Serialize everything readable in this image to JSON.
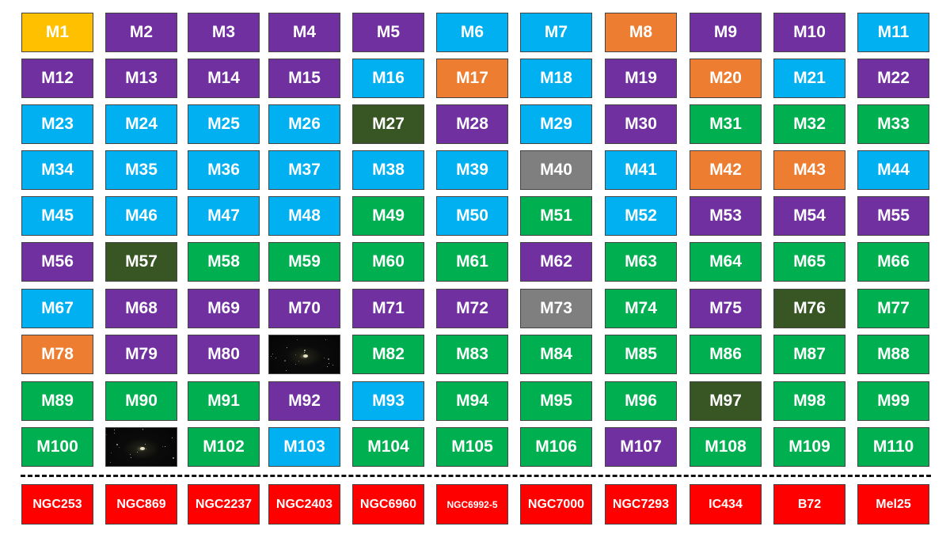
{
  "colors": {
    "yellow": "#FFC000",
    "purple": "#7030A0",
    "blue": "#00B0F0",
    "orange": "#ED7D31",
    "green": "#00B050",
    "darkgreen": "#375623",
    "gray": "#7F7F7F",
    "red": "#FF0000"
  },
  "messier_rows": [
    [
      [
        "M1",
        "yellow"
      ],
      [
        "M2",
        "purple"
      ],
      [
        "M3",
        "purple"
      ],
      [
        "M4",
        "purple"
      ],
      [
        "M5",
        "purple"
      ],
      [
        "M6",
        "blue"
      ],
      [
        "M7",
        "blue"
      ],
      [
        "M8",
        "orange"
      ],
      [
        "M9",
        "purple"
      ],
      [
        "M10",
        "purple"
      ],
      [
        "M11",
        "blue"
      ]
    ],
    [
      [
        "M12",
        "purple"
      ],
      [
        "M13",
        "purple"
      ],
      [
        "M14",
        "purple"
      ],
      [
        "M15",
        "purple"
      ],
      [
        "M16",
        "blue"
      ],
      [
        "M17",
        "orange"
      ],
      [
        "M18",
        "blue"
      ],
      [
        "M19",
        "purple"
      ],
      [
        "M20",
        "orange"
      ],
      [
        "M21",
        "blue"
      ],
      [
        "M22",
        "purple"
      ]
    ],
    [
      [
        "M23",
        "blue"
      ],
      [
        "M24",
        "blue"
      ],
      [
        "M25",
        "blue"
      ],
      [
        "M26",
        "blue"
      ],
      [
        "M27",
        "darkgreen"
      ],
      [
        "M28",
        "purple"
      ],
      [
        "M29",
        "blue"
      ],
      [
        "M30",
        "purple"
      ],
      [
        "M31",
        "green"
      ],
      [
        "M32",
        "green"
      ],
      [
        "M33",
        "green"
      ]
    ],
    [
      [
        "M34",
        "blue"
      ],
      [
        "M35",
        "blue"
      ],
      [
        "M36",
        "blue"
      ],
      [
        "M37",
        "blue"
      ],
      [
        "M38",
        "blue"
      ],
      [
        "M39",
        "blue"
      ],
      [
        "M40",
        "gray"
      ],
      [
        "M41",
        "blue"
      ],
      [
        "M42",
        "orange"
      ],
      [
        "M43",
        "orange"
      ],
      [
        "M44",
        "blue"
      ]
    ],
    [
      [
        "M45",
        "blue"
      ],
      [
        "M46",
        "blue"
      ],
      [
        "M47",
        "blue"
      ],
      [
        "M48",
        "blue"
      ],
      [
        "M49",
        "green"
      ],
      [
        "M50",
        "blue"
      ],
      [
        "M51",
        "green"
      ],
      [
        "M52",
        "blue"
      ],
      [
        "M53",
        "purple"
      ],
      [
        "M54",
        "purple"
      ],
      [
        "M55",
        "purple"
      ]
    ],
    [
      [
        "M56",
        "purple"
      ],
      [
        "M57",
        "darkgreen"
      ],
      [
        "M58",
        "green"
      ],
      [
        "M59",
        "green"
      ],
      [
        "M60",
        "green"
      ],
      [
        "M61",
        "green"
      ],
      [
        "M62",
        "purple"
      ],
      [
        "M63",
        "green"
      ],
      [
        "M64",
        "green"
      ],
      [
        "M65",
        "green"
      ],
      [
        "M66",
        "green"
      ]
    ],
    [
      [
        "M67",
        "blue"
      ],
      [
        "M68",
        "purple"
      ],
      [
        "M69",
        "purple"
      ],
      [
        "M70",
        "purple"
      ],
      [
        "M71",
        "purple"
      ],
      [
        "M72",
        "purple"
      ],
      [
        "M73",
        "gray"
      ],
      [
        "M74",
        "green"
      ],
      [
        "M75",
        "purple"
      ],
      [
        "M76",
        "darkgreen"
      ],
      [
        "M77",
        "green"
      ]
    ],
    [
      [
        "M78",
        "orange"
      ],
      [
        "M79",
        "purple"
      ],
      [
        "M80",
        "purple"
      ],
      [
        "",
        "photo"
      ],
      [
        "M82",
        "green"
      ],
      [
        "M83",
        "green"
      ],
      [
        "M84",
        "green"
      ],
      [
        "M85",
        "green"
      ],
      [
        "M86",
        "green"
      ],
      [
        "M87",
        "green"
      ],
      [
        "M88",
        "green"
      ]
    ],
    [
      [
        "M89",
        "green"
      ],
      [
        "M90",
        "green"
      ],
      [
        "M91",
        "green"
      ],
      [
        "M92",
        "purple"
      ],
      [
        "M93",
        "blue"
      ],
      [
        "M94",
        "green"
      ],
      [
        "M95",
        "green"
      ],
      [
        "M96",
        "green"
      ],
      [
        "M97",
        "darkgreen"
      ],
      [
        "M98",
        "green"
      ],
      [
        "M99",
        "green"
      ]
    ],
    [
      [
        "M100",
        "green"
      ],
      [
        "",
        "photo"
      ],
      [
        "M102",
        "green"
      ],
      [
        "M103",
        "blue"
      ],
      [
        "M104",
        "green"
      ],
      [
        "M105",
        "green"
      ],
      [
        "M106",
        "green"
      ],
      [
        "M107",
        "purple"
      ],
      [
        "M108",
        "green"
      ],
      [
        "M109",
        "green"
      ],
      [
        "M110",
        "green"
      ]
    ]
  ],
  "extra_row": [
    [
      "NGC253",
      "red"
    ],
    [
      "NGC869",
      "red"
    ],
    [
      "NGC2237",
      "red"
    ],
    [
      "NGC2403",
      "red"
    ],
    [
      "NGC6960",
      "red"
    ],
    [
      "NGC6992-5",
      "red"
    ],
    [
      "NGC7000",
      "red"
    ],
    [
      "NGC7293",
      "red"
    ],
    [
      "IC434",
      "red"
    ],
    [
      "B72",
      "red"
    ],
    [
      "Mel25",
      "red"
    ]
  ]
}
